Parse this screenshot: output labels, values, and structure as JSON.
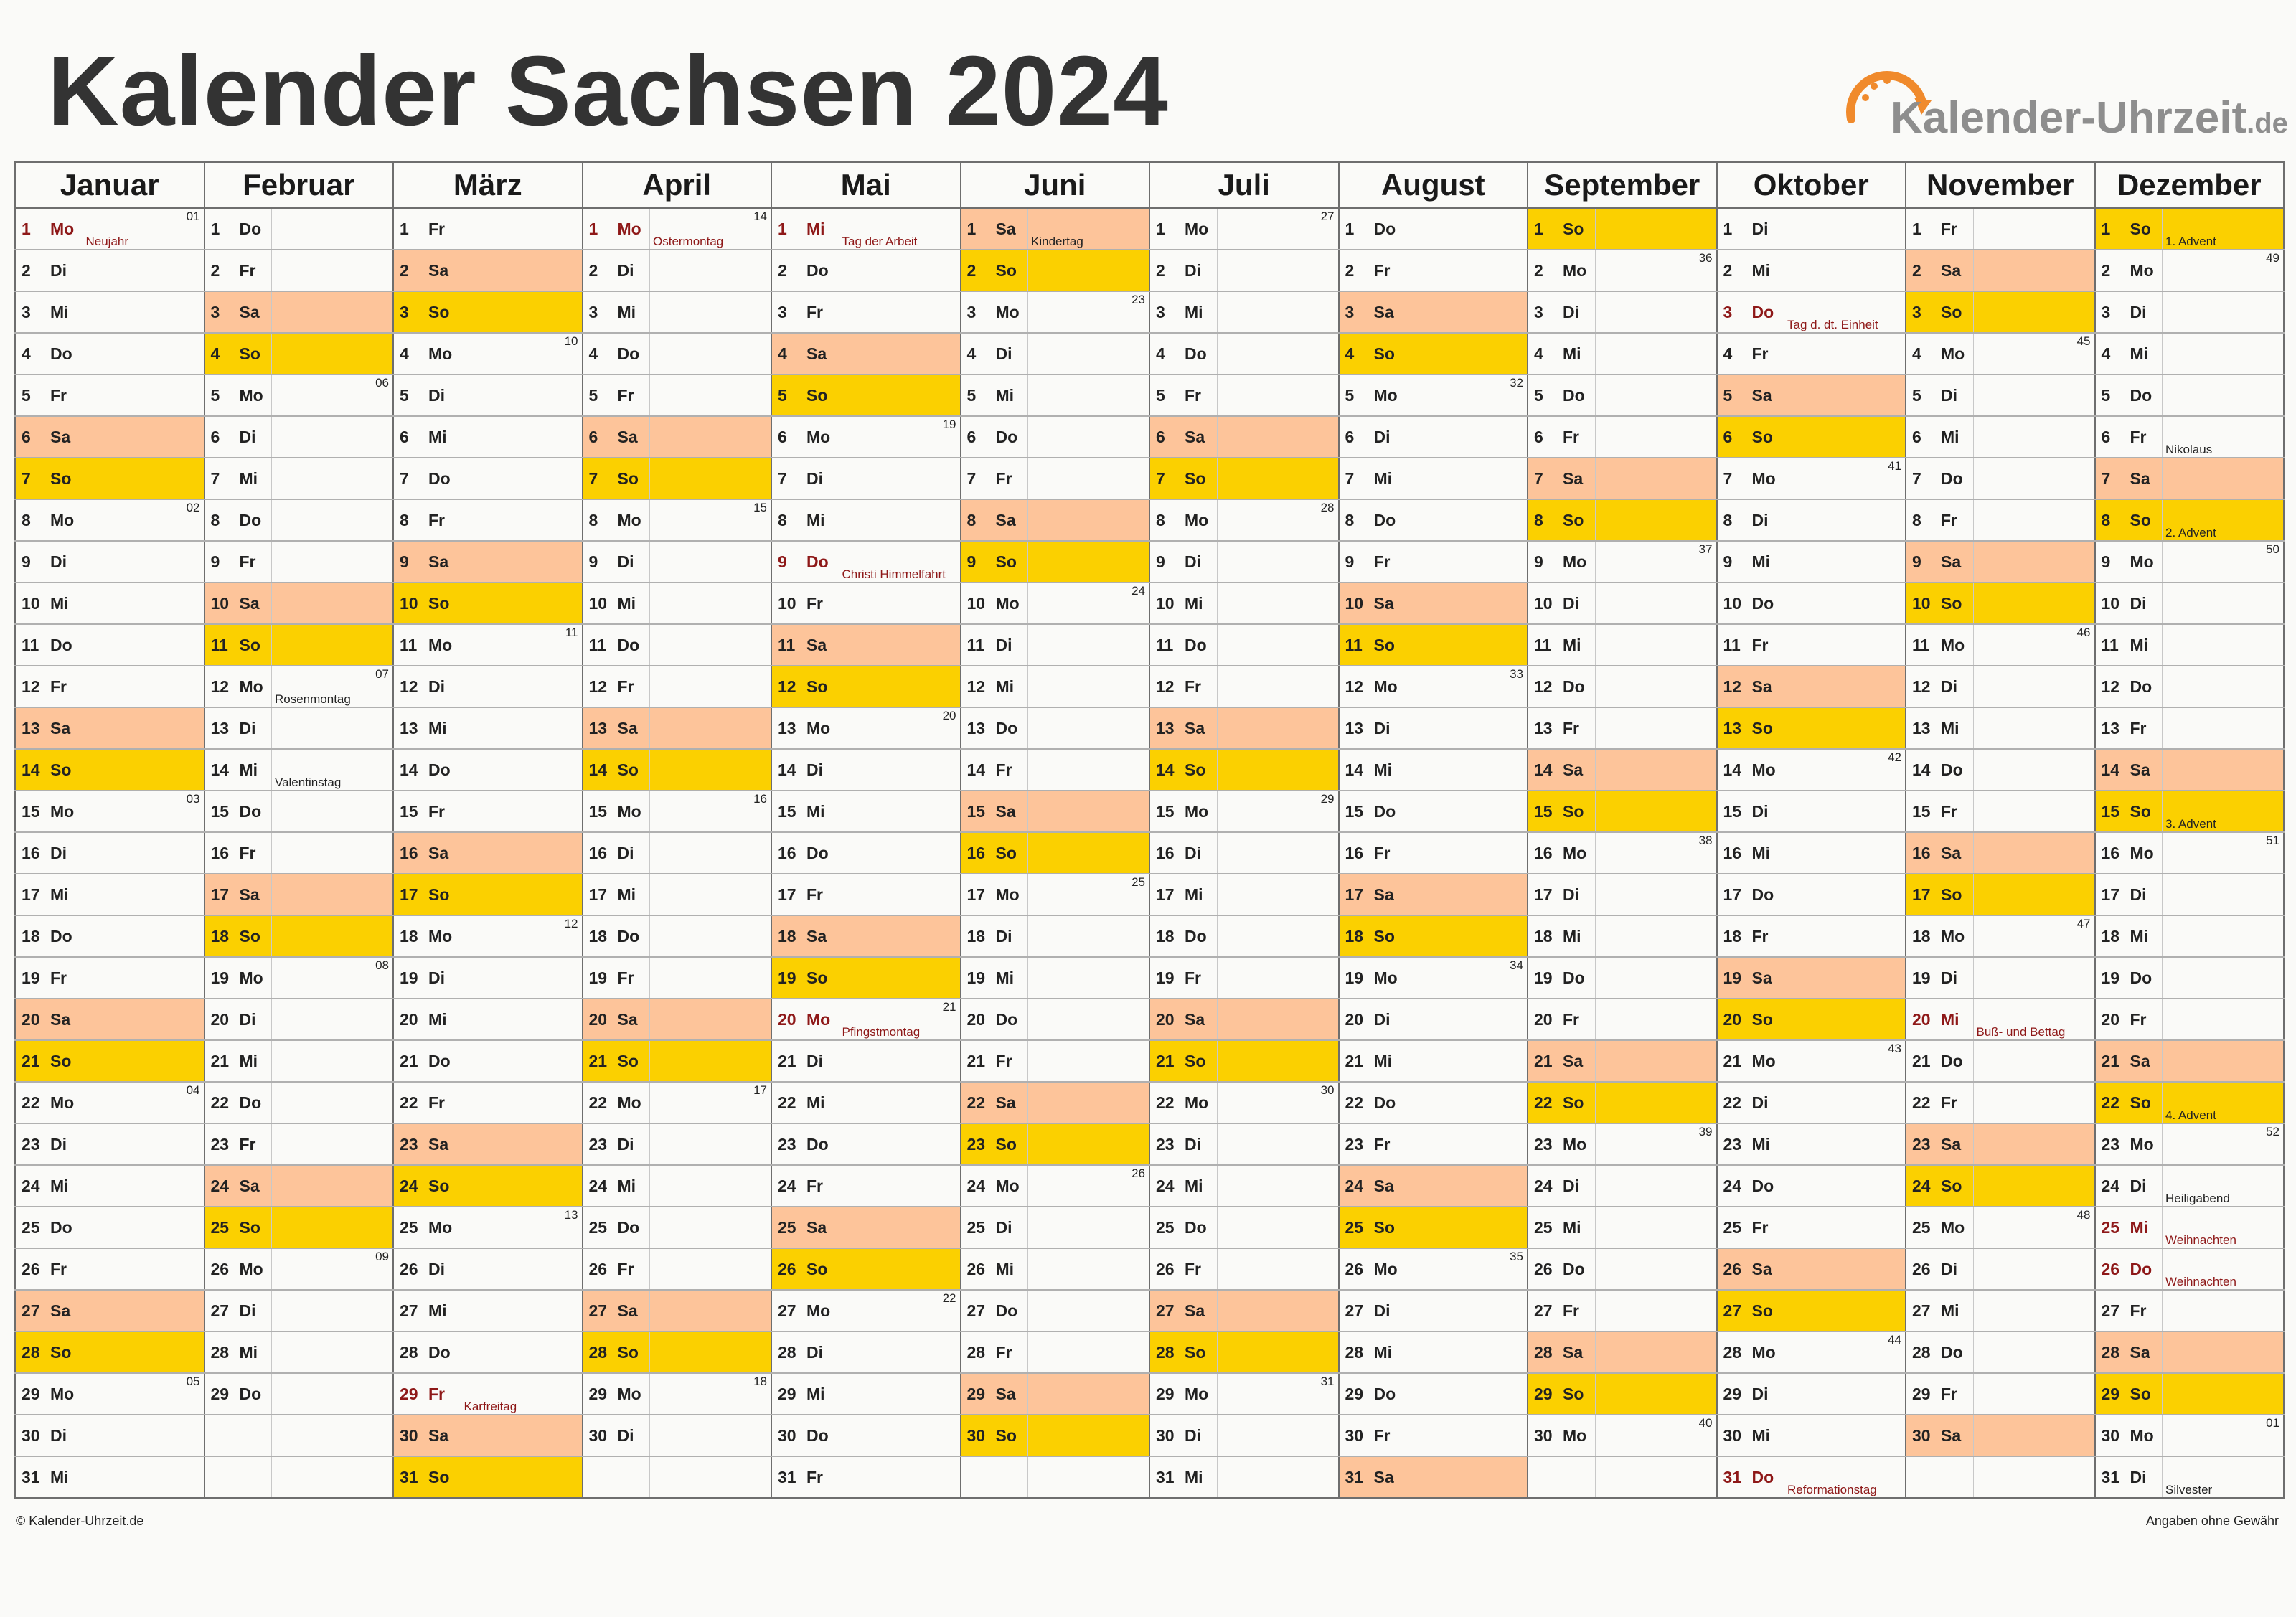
{
  "title": "Kalender Sachsen 2024",
  "logo": {
    "text": "Kalender-Uhrzeit",
    "tld": ".de"
  },
  "footer": {
    "copyright": "© Kalender-Uhrzeit.de",
    "disclaimer": "Angaben ohne Gewähr"
  },
  "colors": {
    "saturday": "#fdc49a",
    "sunday": "#fbd000",
    "holiday_text": "#8e1818"
  },
  "year": 2024,
  "months": [
    {
      "name": "Januar",
      "days": 31,
      "start": 1
    },
    {
      "name": "Februar",
      "days": 29,
      "start": 4
    },
    {
      "name": "März",
      "days": 31,
      "start": 5
    },
    {
      "name": "April",
      "days": 30,
      "start": 1
    },
    {
      "name": "Mai",
      "days": 31,
      "start": 3
    },
    {
      "name": "Juni",
      "days": 30,
      "start": 6
    },
    {
      "name": "Juli",
      "days": 31,
      "start": 1
    },
    {
      "name": "August",
      "days": 31,
      "start": 4
    },
    {
      "name": "September",
      "days": 30,
      "start": 0
    },
    {
      "name": "Oktober",
      "days": 31,
      "start": 2
    },
    {
      "name": "November",
      "days": 30,
      "start": 5
    },
    {
      "name": "Dezember",
      "days": 31,
      "start": 0
    }
  ],
  "weekday_abbr": [
    "So",
    "Mo",
    "Di",
    "Mi",
    "Do",
    "Fr",
    "Sa"
  ],
  "holidays": [
    {
      "m": 0,
      "d": 1,
      "label": "Neujahr"
    },
    {
      "m": 2,
      "d": 29,
      "label": "Karfreitag"
    },
    {
      "m": 3,
      "d": 1,
      "label": "Ostermontag"
    },
    {
      "m": 4,
      "d": 1,
      "label": "Tag der Arbeit"
    },
    {
      "m": 4,
      "d": 9,
      "label": "Christi Himmelfahrt"
    },
    {
      "m": 4,
      "d": 20,
      "label": "Pfingstmontag"
    },
    {
      "m": 9,
      "d": 3,
      "label": "Tag d. dt. Einheit"
    },
    {
      "m": 9,
      "d": 31,
      "label": "Reformationstag"
    },
    {
      "m": 10,
      "d": 20,
      "label": "Buß- und Bettag"
    },
    {
      "m": 11,
      "d": 25,
      "label": "Weihnachten"
    },
    {
      "m": 11,
      "d": 26,
      "label": "Weihnachten"
    }
  ],
  "notes": [
    {
      "m": 1,
      "d": 12,
      "label": "Rosenmontag"
    },
    {
      "m": 1,
      "d": 14,
      "label": "Valentinstag"
    },
    {
      "m": 5,
      "d": 1,
      "label": "Kindertag"
    },
    {
      "m": 11,
      "d": 1,
      "label": "1. Advent"
    },
    {
      "m": 11,
      "d": 6,
      "label": "Nikolaus"
    },
    {
      "m": 11,
      "d": 8,
      "label": "2. Advent"
    },
    {
      "m": 11,
      "d": 15,
      "label": "3. Advent"
    },
    {
      "m": 11,
      "d": 22,
      "label": "4. Advent"
    },
    {
      "m": 11,
      "d": 24,
      "label": "Heiligabend"
    },
    {
      "m": 11,
      "d": 31,
      "label": "Silvester"
    }
  ],
  "week_numbers": "ISO week number shown on each Monday"
}
